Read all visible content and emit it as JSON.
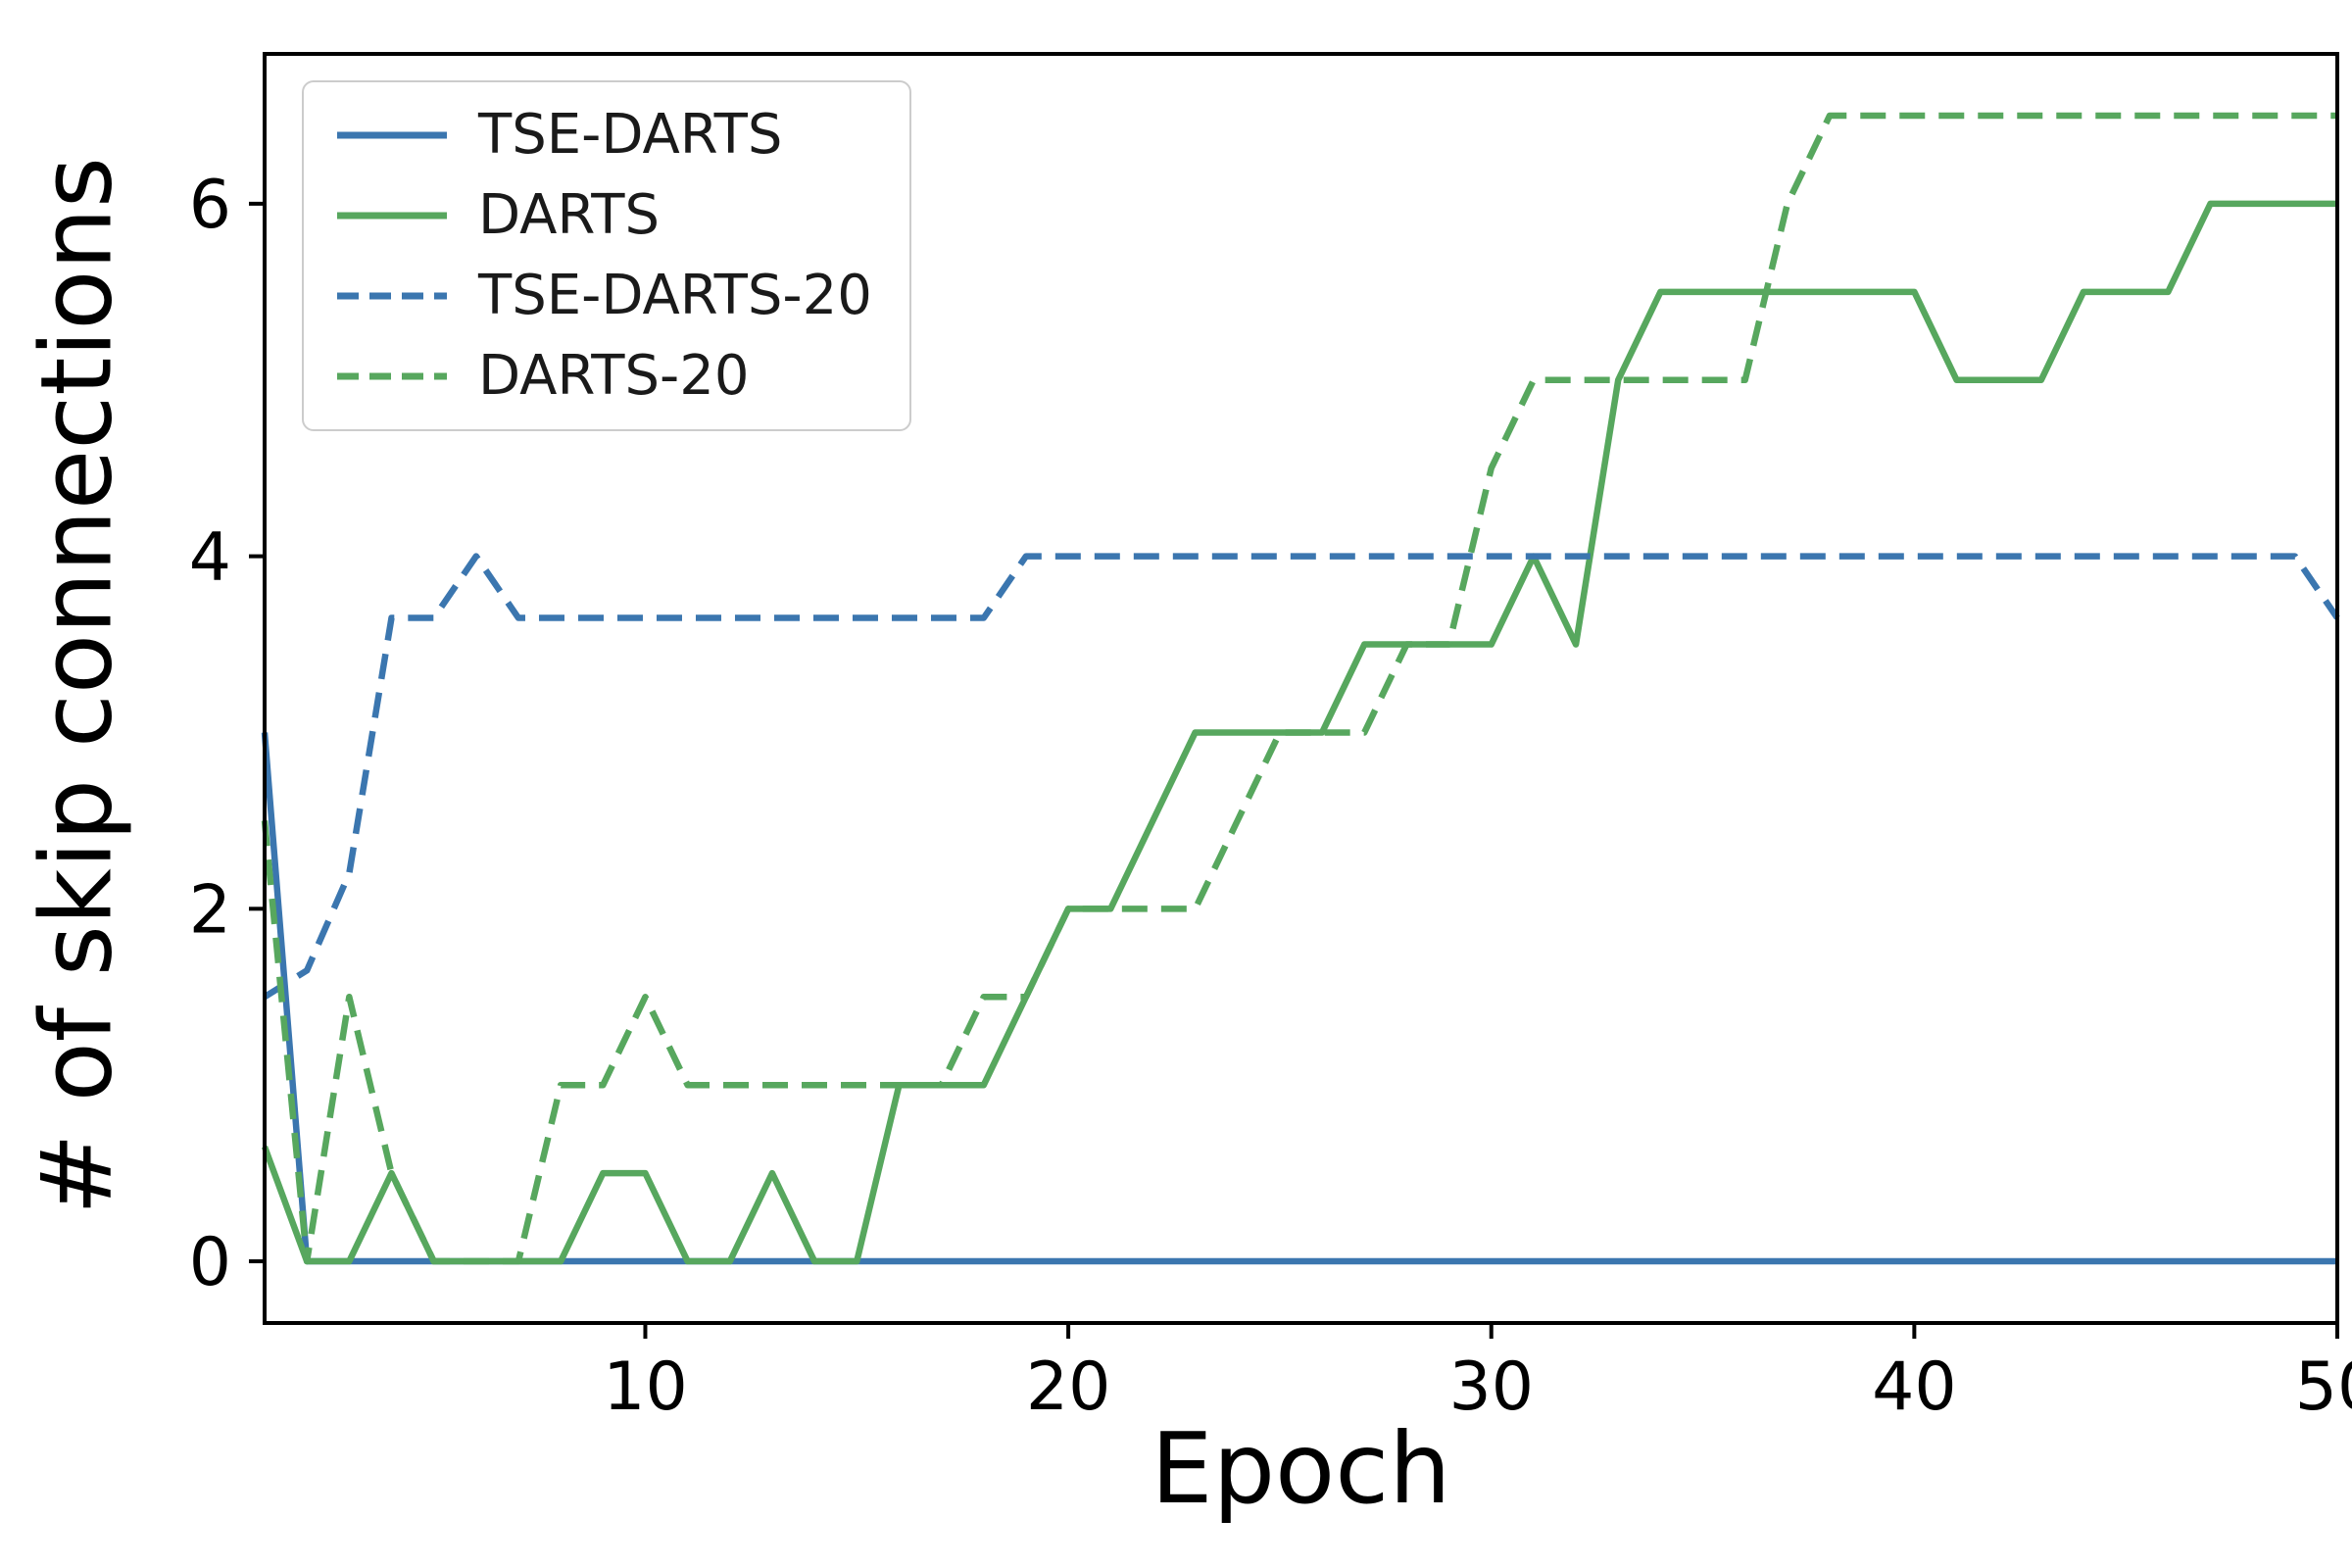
{
  "chart_data": {
    "type": "line",
    "title": "",
    "xlabel": "Epoch",
    "ylabel": "# of skip connections",
    "xlim": [
      1,
      50
    ],
    "ylim": [
      -0.35,
      6.85
    ],
    "xticks": [
      10,
      20,
      30,
      40,
      50
    ],
    "yticks": [
      0,
      2,
      4,
      6
    ],
    "grid": false,
    "legend_position": "upper left",
    "x": [
      1,
      2,
      3,
      4,
      5,
      6,
      7,
      8,
      9,
      10,
      11,
      12,
      13,
      14,
      15,
      16,
      17,
      18,
      19,
      20,
      21,
      22,
      23,
      24,
      25,
      26,
      27,
      28,
      29,
      30,
      31,
      32,
      33,
      34,
      35,
      36,
      37,
      38,
      39,
      40,
      41,
      42,
      43,
      44,
      45,
      46,
      47,
      48,
      49,
      50
    ],
    "series": [
      {
        "name": "TSE-DARTS",
        "color": "#3b76af",
        "style": "solid",
        "values": [
          3,
          0,
          0,
          0,
          0,
          0,
          0,
          0,
          0,
          0,
          0,
          0,
          0,
          0,
          0,
          0,
          0,
          0,
          0,
          0,
          0,
          0,
          0,
          0,
          0,
          0,
          0,
          0,
          0,
          0,
          0,
          0,
          0,
          0,
          0,
          0,
          0,
          0,
          0,
          0,
          0,
          0,
          0,
          0,
          0,
          0,
          0,
          0,
          0,
          0
        ]
      },
      {
        "name": "DARTS",
        "color": "#57a75e",
        "style": "solid",
        "values": [
          0.65,
          0,
          0,
          0.5,
          0,
          0,
          0,
          0,
          0.5,
          0.5,
          0,
          0,
          0.5,
          0,
          0,
          1,
          1,
          1,
          1.5,
          2,
          2,
          2.5,
          3,
          3,
          3,
          3,
          3.5,
          3.5,
          3.5,
          3.5,
          4,
          3.5,
          5,
          5.5,
          5.5,
          5.5,
          5.5,
          5.5,
          5.5,
          5.5,
          5,
          5,
          5,
          5.5,
          5.5,
          5.5,
          6,
          6,
          6,
          6
        ]
      },
      {
        "name": "TSE-DARTS-20",
        "color": "#3b76af",
        "style": "dashed",
        "values": [
          1.5,
          1.65,
          2.2,
          3.65,
          3.65,
          4,
          3.65,
          3.65,
          3.65,
          3.65,
          3.65,
          3.65,
          3.65,
          3.65,
          3.65,
          3.65,
          3.65,
          3.65,
          4,
          4,
          4,
          4,
          4,
          4,
          4,
          4,
          4,
          4,
          4,
          4,
          4,
          4,
          4,
          4,
          4,
          4,
          4,
          4,
          4,
          4,
          4,
          4,
          4,
          4,
          4,
          4,
          4,
          4,
          4,
          3.65
        ]
      },
      {
        "name": "DARTS-20",
        "color": "#57a75e",
        "style": "dashed",
        "values": [
          2.5,
          0,
          1.5,
          0.5,
          0,
          0,
          0,
          1,
          1,
          1.5,
          1,
          1,
          1,
          1,
          1,
          1,
          1,
          1.5,
          1.5,
          2,
          2,
          2,
          2,
          2.5,
          3,
          3,
          3,
          3.5,
          3.5,
          4.5,
          5,
          5,
          5,
          5,
          5,
          5,
          6,
          6.5,
          6.5,
          6.5,
          6.5,
          6.5,
          6.5,
          6.5,
          6.5,
          6.5,
          6.5,
          6.5,
          6.5,
          6.5
        ]
      }
    ]
  }
}
